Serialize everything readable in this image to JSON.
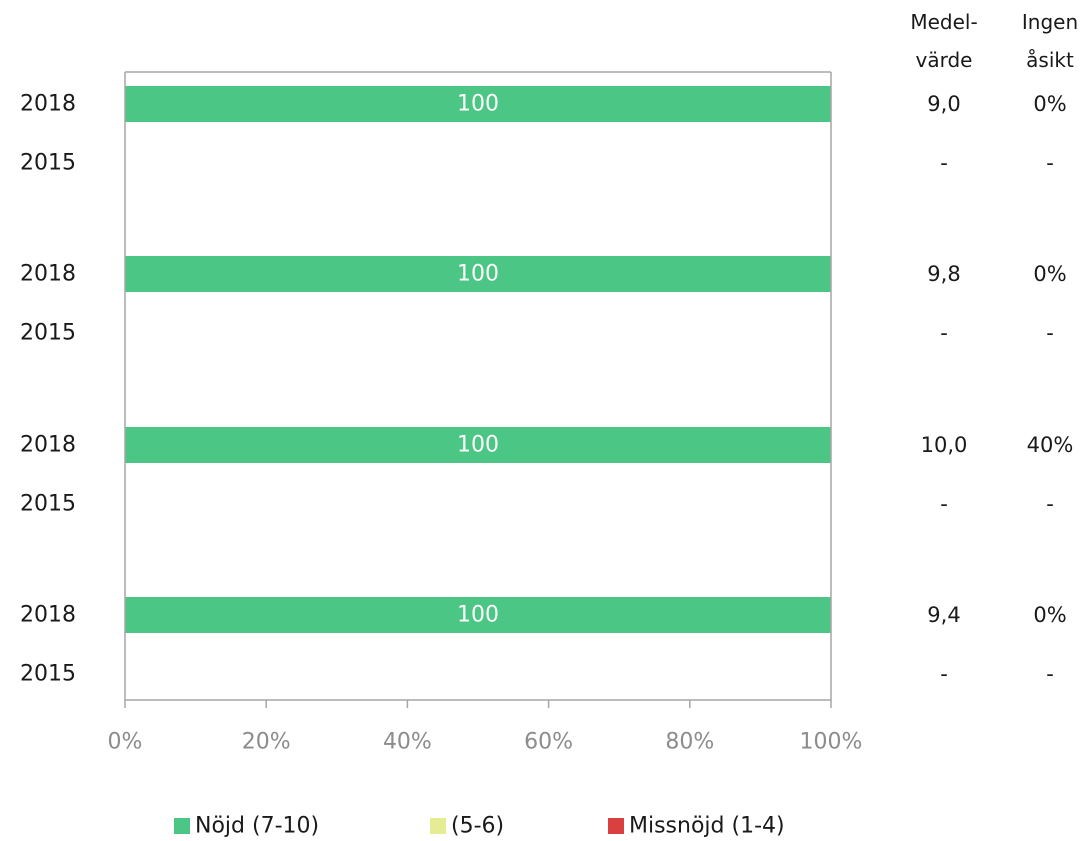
{
  "chart_data": {
    "type": "bar",
    "stacked": true,
    "orientation": "horizontal",
    "categories": [
      "2018",
      "2015",
      "2018",
      "2015",
      "2018",
      "2015",
      "2018",
      "2015"
    ],
    "series": [
      {
        "name": "Nöjd (7-10)",
        "color": "#4cc685",
        "values": [
          100,
          null,
          100,
          null,
          100,
          null,
          100,
          null
        ]
      },
      {
        "name": "(5-6)",
        "color": "#e6ec94",
        "values": [
          0,
          null,
          0,
          null,
          0,
          null,
          0,
          null
        ]
      },
      {
        "name": "Missnöjd (1-4)",
        "color": "#d9403f",
        "values": [
          0,
          null,
          0,
          null,
          0,
          null,
          0,
          null
        ]
      }
    ],
    "data_labels": [
      "100",
      "",
      "100",
      "",
      "100",
      "",
      "100",
      ""
    ],
    "x_ticks": [
      "0%",
      "20%",
      "40%",
      "60%",
      "80%",
      "100%"
    ],
    "xlim": [
      0,
      100
    ],
    "grid": false,
    "legend_position": "bottom",
    "side_table": {
      "headers": [
        {
          "line1": "Medel-",
          "line2": "värde"
        },
        {
          "line1": "Ingen",
          "line2": "åsikt"
        }
      ],
      "rows": [
        [
          "9,0",
          "0%"
        ],
        [
          "-",
          "-"
        ],
        [
          "9,8",
          "0%"
        ],
        [
          "-",
          "-"
        ],
        [
          "10,0",
          "40%"
        ],
        [
          "-",
          "-"
        ],
        [
          "9,4",
          "0%"
        ],
        [
          "-",
          "-"
        ]
      ]
    }
  }
}
